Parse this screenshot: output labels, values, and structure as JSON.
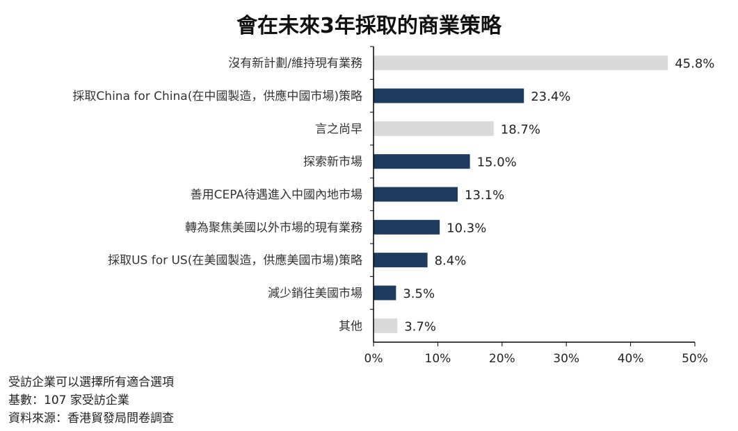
{
  "chart_data": {
    "type": "bar",
    "orientation": "horizontal",
    "title": "會在未來3年採取的商業策略",
    "categories": [
      "沒有新計劃/維持現有業務",
      "採取China for China(在中國製造，供應中國市場)策略",
      "言之尚早",
      "探索新市場",
      "善用CEPA待遇進入中國內地市場",
      "轉為聚焦美國以外市場的現有業務",
      "採取US for US(在美國製造，供應美國市場)策略",
      "減少銷往美國市場",
      "其他"
    ],
    "values": [
      45.8,
      23.4,
      18.7,
      15.0,
      13.1,
      10.3,
      8.4,
      3.5,
      3.7
    ],
    "value_labels": [
      "45.8%",
      "23.4%",
      "18.7%",
      "15.0%",
      "13.1%",
      "10.3%",
      "8.4%",
      "3.5%",
      "3.7%"
    ],
    "bar_colors": [
      "#d9d9d9",
      "#1f3a5f",
      "#d9d9d9",
      "#1f3a5f",
      "#1f3a5f",
      "#1f3a5f",
      "#1f3a5f",
      "#1f3a5f",
      "#d9d9d9"
    ],
    "xlim": [
      0,
      50
    ],
    "xticks": [
      0,
      10,
      20,
      30,
      40,
      50
    ],
    "xtick_labels": [
      "0%",
      "10%",
      "20%",
      "30%",
      "40%",
      "50%"
    ],
    "grid": false,
    "legend": "none"
  },
  "notes": {
    "line1": "受訪企業可以選擇所有適合選項",
    "line2": "基數：107 家受訪企業",
    "line3": "資料來源：香港貿發局問卷調查"
  }
}
